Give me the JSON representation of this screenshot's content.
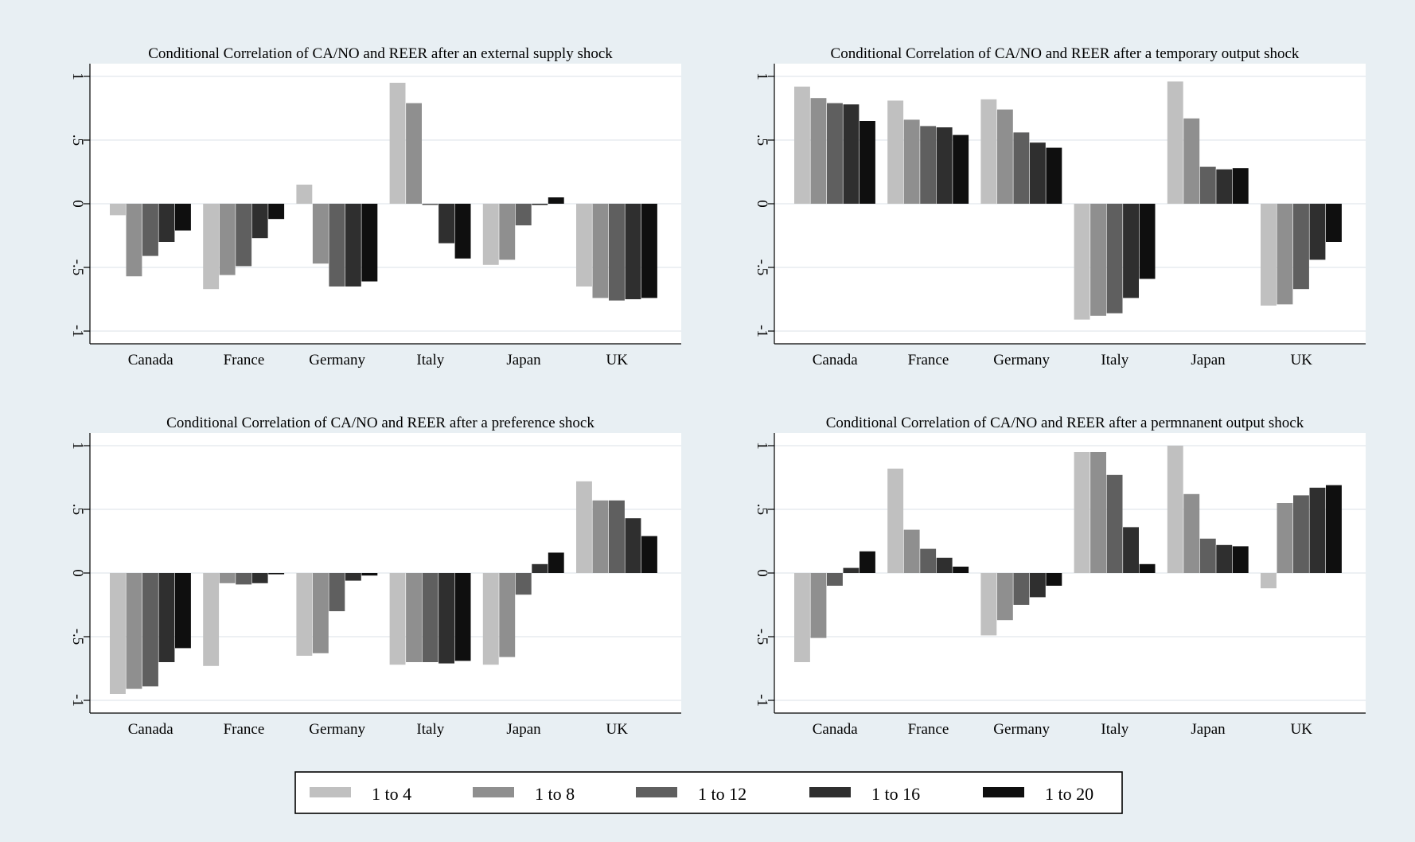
{
  "chart_data": {
    "type": "bar",
    "layout": "2x2 grid of grouped bar charts with a shared legend at the bottom",
    "colors": {
      "background": "#e8eff3",
      "plot_background": "#ffffff",
      "series": [
        "#c0c0c0",
        "#8f8f8f",
        "#5f5f5f",
        "#2f2f2f",
        "#0f0f0f"
      ]
    },
    "grid": true,
    "legend": {
      "placement": "bottom-center",
      "entries": [
        "1 to 4",
        "1 to 8",
        "1 to 12",
        "1 to 16",
        "1 to 20"
      ]
    },
    "panels": [
      {
        "title": "Conditional Correlation of CA/NO and REER after an external supply shock",
        "categories": [
          "Canada",
          "France",
          "Germany",
          "Italy",
          "Japan",
          "UK"
        ],
        "ylim": [
          -1.1,
          1.1
        ],
        "yticks": [
          -1,
          -0.5,
          0,
          0.5,
          1
        ],
        "ytick_labels": [
          "-1",
          "-.5",
          "0",
          ".5",
          "1"
        ],
        "series": [
          {
            "name": "1 to 4",
            "values": [
              -0.09,
              -0.67,
              0.15,
              0.95,
              -0.48,
              -0.65
            ]
          },
          {
            "name": "1 to 8",
            "values": [
              -0.57,
              -0.56,
              -0.47,
              0.79,
              -0.44,
              -0.74
            ]
          },
          {
            "name": "1 to 12",
            "values": [
              -0.41,
              -0.49,
              -0.65,
              -0.01,
              -0.17,
              -0.76
            ]
          },
          {
            "name": "1 to 16",
            "values": [
              -0.3,
              -0.27,
              -0.65,
              -0.31,
              -0.01,
              -0.75
            ]
          },
          {
            "name": "1 to 20",
            "values": [
              -0.21,
              -0.12,
              -0.61,
              -0.43,
              0.05,
              -0.74
            ]
          }
        ]
      },
      {
        "title": "Conditional Correlation of CA/NO and REER after a temporary output shock",
        "categories": [
          "Canada",
          "France",
          "Germany",
          "Italy",
          "Japan",
          "UK"
        ],
        "ylim": [
          -1.1,
          1.1
        ],
        "yticks": [
          -1,
          -0.5,
          0,
          0.5,
          1
        ],
        "ytick_labels": [
          "-1",
          "-.5",
          "0",
          ".5",
          "1"
        ],
        "series": [
          {
            "name": "1 to 4",
            "values": [
              0.92,
              0.81,
              0.82,
              -0.91,
              0.96,
              -0.8
            ]
          },
          {
            "name": "1 to 8",
            "values": [
              0.83,
              0.66,
              0.74,
              -0.88,
              0.67,
              -0.79
            ]
          },
          {
            "name": "1 to 12",
            "values": [
              0.79,
              0.61,
              0.56,
              -0.86,
              0.29,
              -0.67
            ]
          },
          {
            "name": "1 to 16",
            "values": [
              0.78,
              0.6,
              0.48,
              -0.74,
              0.27,
              -0.44
            ]
          },
          {
            "name": "1 to 20",
            "values": [
              0.65,
              0.54,
              0.44,
              -0.59,
              0.28,
              -0.3
            ]
          }
        ]
      },
      {
        "title": "Conditional Correlation of CA/NO and REER after a preference shock",
        "categories": [
          "Canada",
          "France",
          "Germany",
          "Italy",
          "Japan",
          "UK"
        ],
        "ylim": [
          -1.1,
          1.1
        ],
        "yticks": [
          -1,
          -0.5,
          0,
          0.5,
          1
        ],
        "ytick_labels": [
          "-1",
          "-.5",
          "0",
          ".5",
          "1"
        ],
        "series": [
          {
            "name": "1 to 4",
            "values": [
              -0.95,
              -0.73,
              -0.65,
              -0.72,
              -0.72,
              0.72
            ]
          },
          {
            "name": "1 to 8",
            "values": [
              -0.91,
              -0.08,
              -0.63,
              -0.7,
              -0.66,
              0.57
            ]
          },
          {
            "name": "1 to 12",
            "values": [
              -0.89,
              -0.09,
              -0.3,
              -0.7,
              -0.17,
              0.57
            ]
          },
          {
            "name": "1 to 16",
            "values": [
              -0.7,
              -0.08,
              -0.06,
              -0.71,
              0.07,
              0.43
            ]
          },
          {
            "name": "1 to 20",
            "values": [
              -0.59,
              -0.01,
              -0.02,
              -0.69,
              0.16,
              0.29
            ]
          }
        ]
      },
      {
        "title": "Conditional Correlation of CA/NO and REER after a permnanent output shock",
        "categories": [
          "Canada",
          "France",
          "Germany",
          "Italy",
          "Japan",
          "UK"
        ],
        "ylim": [
          -1.1,
          1.1
        ],
        "yticks": [
          -1,
          -0.5,
          0,
          0.5,
          1
        ],
        "ytick_labels": [
          "-1",
          "-.5",
          "0",
          ".5",
          "1"
        ],
        "series": [
          {
            "name": "1 to 4",
            "values": [
              -0.7,
              0.82,
              -0.49,
              0.95,
              1.0,
              -0.12
            ]
          },
          {
            "name": "1 to 8",
            "values": [
              -0.51,
              0.34,
              -0.37,
              0.95,
              0.62,
              0.55
            ]
          },
          {
            "name": "1 to 12",
            "values": [
              -0.1,
              0.19,
              -0.25,
              0.77,
              0.27,
              0.61
            ]
          },
          {
            "name": "1 to 16",
            "values": [
              0.04,
              0.12,
              -0.19,
              0.36,
              0.22,
              0.67
            ]
          },
          {
            "name": "1 to 20",
            "values": [
              0.17,
              0.05,
              -0.1,
              0.07,
              0.21,
              0.69
            ]
          }
        ]
      }
    ]
  }
}
